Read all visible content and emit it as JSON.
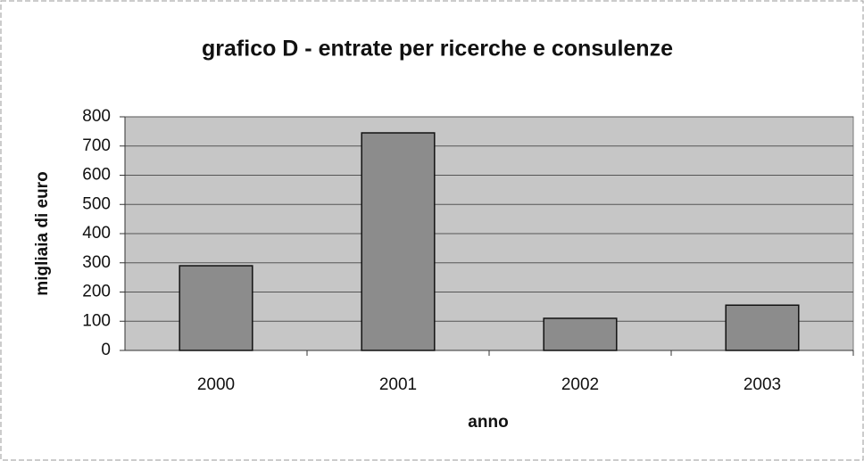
{
  "chart_data": {
    "type": "bar",
    "title": "grafico D - entrate per ricerche e consulenze",
    "x_label": "anno",
    "y_label": "migliaia di euro",
    "categories": [
      "2000",
      "2001",
      "2002",
      "2003"
    ],
    "values": [
      290,
      745,
      110,
      155
    ],
    "color": "#8c8c8c",
    "ylim": [
      0,
      800
    ],
    "yticks": [
      0,
      100,
      200,
      300,
      400,
      500,
      600,
      700,
      800
    ],
    "grid": true
  }
}
